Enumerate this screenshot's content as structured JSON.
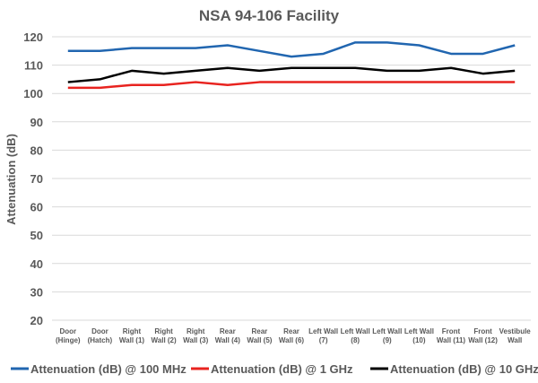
{
  "chart_data": {
    "type": "line",
    "title": "NSA 94-106 Facility",
    "xlabel": "",
    "ylabel": "Attenuation (dB)",
    "ylim": [
      20,
      120
    ],
    "yticks": [
      20,
      30,
      40,
      50,
      60,
      70,
      80,
      90,
      100,
      110,
      120
    ],
    "grid": true,
    "legend_position": "bottom",
    "categories": [
      [
        "Door",
        "(Hinge)"
      ],
      [
        "Door",
        "(Hatch)"
      ],
      [
        "Right",
        "Wall (1)"
      ],
      [
        "Right",
        "Wall (2)"
      ],
      [
        "Right",
        "Wall (3)"
      ],
      [
        "Rear",
        "Wall (4)"
      ],
      [
        "Rear",
        "Wall (5)"
      ],
      [
        "Rear",
        "Wall (6)"
      ],
      [
        "Left Wall",
        "(7)"
      ],
      [
        "Left Wall",
        "(8)"
      ],
      [
        "Left Wall",
        "(9)"
      ],
      [
        "Left Wall",
        "(10)"
      ],
      [
        "Front",
        "Wall (11)"
      ],
      [
        "Front",
        "Wall (12)"
      ],
      [
        "Vestibule",
        "Wall"
      ]
    ],
    "series": [
      {
        "name": "Attenuation (dB) @ 100 MHz",
        "color": "#2166b0",
        "values": [
          115,
          115,
          116,
          116,
          116,
          117,
          115,
          113,
          114,
          118,
          118,
          117,
          114,
          114,
          117
        ]
      },
      {
        "name": "Attenuation (dB) @ 1 GHz",
        "color": "#e8231f",
        "values": [
          102,
          102,
          103,
          103,
          104,
          103,
          104,
          104,
          104,
          104,
          104,
          104,
          104,
          104,
          104
        ]
      },
      {
        "name": "Attenuation (dB) @ 10 GHz",
        "color": "#000000",
        "values": [
          104,
          105,
          108,
          107,
          108,
          109,
          108,
          109,
          109,
          109,
          108,
          108,
          109,
          107,
          108
        ]
      }
    ]
  }
}
